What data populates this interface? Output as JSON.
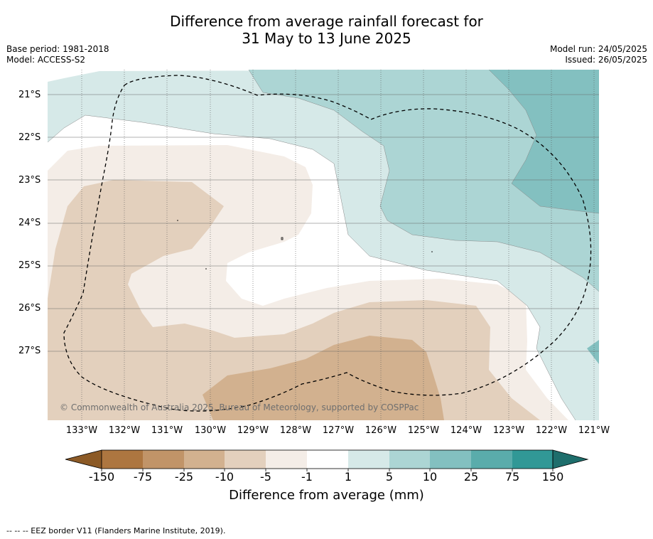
{
  "title_line1": "Difference from average rainfall forecast for",
  "title_line2": "31 May to 13 June 2025",
  "base_period": "Base period: 1981-2018",
  "model": "Model: ACCESS-S2",
  "model_run": "Model run: 24/05/2025",
  "issued": "Issued: 26/05/2025",
  "lat_labels": [
    "21°S",
    "22°S",
    "23°S",
    "24°S",
    "25°S",
    "26°S",
    "27°S"
  ],
  "lon_labels": [
    "133°W",
    "132°W",
    "131°W",
    "130°W",
    "129°W",
    "128°W",
    "127°W",
    "126°W",
    "125°W",
    "124°W",
    "123°W",
    "122°W",
    "121°W"
  ],
  "copyright": "© Commonwealth of Australia 2025, Bureau of Meteorology, supported by COSPPac",
  "colorbar": {
    "ticks": [
      "-150",
      "-75",
      "-25",
      "-10",
      "-5",
      "-1",
      "1",
      "5",
      "10",
      "25",
      "75",
      "150"
    ],
    "colors": [
      "#8c5a26",
      "#ad7640",
      "#c19468",
      "#d2b18f",
      "#e3d0bd",
      "#f4ede7",
      "#ffffff",
      "#d6e9e8",
      "#acd5d4",
      "#83c0c0",
      "#5aacab",
      "#319896",
      "#1e6e6c"
    ],
    "label": "Difference from average (mm)"
  },
  "footnote": "--  --  -- EEZ border V11 (Flanders Marine Institute, 2019)."
}
